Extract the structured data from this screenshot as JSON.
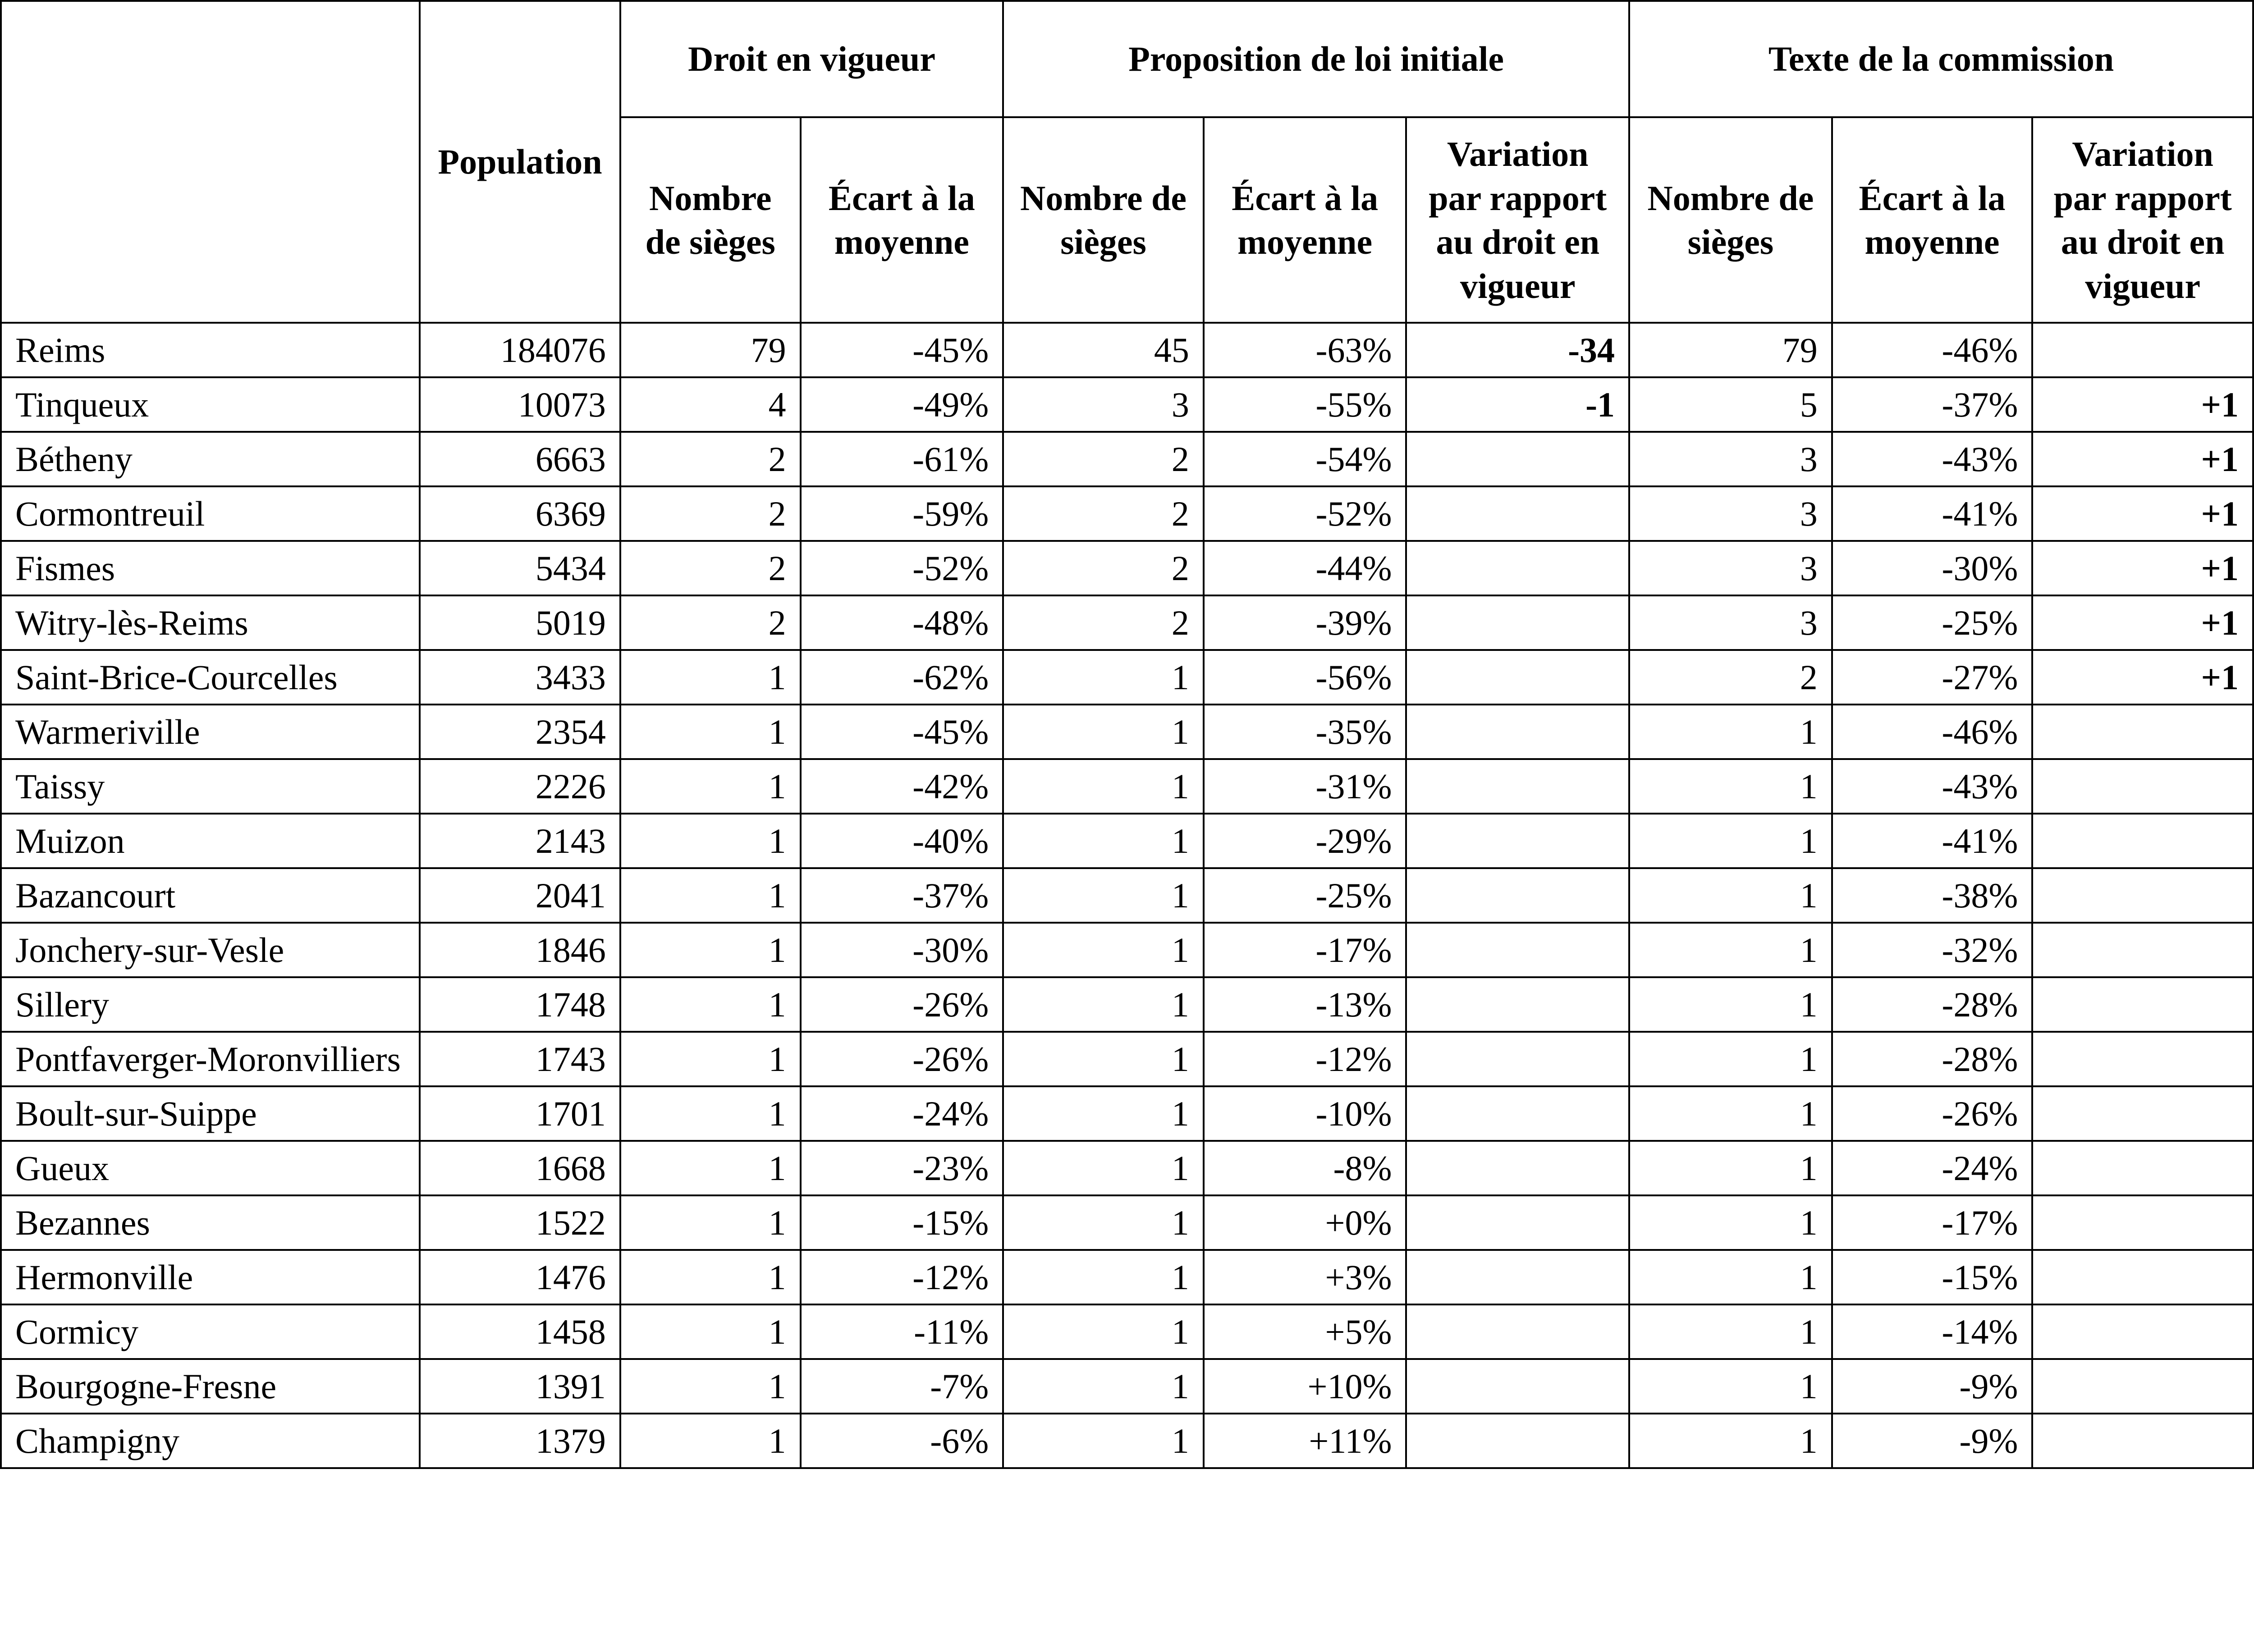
{
  "headers": {
    "population": "Population",
    "group1": "Droit en vigueur",
    "group2": "Proposition de loi initiale",
    "group3": "Texte de la commission",
    "seats": "Nombre de sièges",
    "seats_alt": "Nombre de sièges",
    "ecart": "Écart à la moyenne",
    "variation": "Variation par rapport au droit en vigueur"
  },
  "rows": [
    [
      "Reims",
      "184076",
      "79",
      "-45%",
      "45",
      "-63%",
      "-34",
      "79",
      "-46%",
      ""
    ],
    [
      "Tinqueux",
      "10073",
      "4",
      "-49%",
      "3",
      "-55%",
      "-1",
      "5",
      "-37%",
      "+1"
    ],
    [
      "Bétheny",
      "6663",
      "2",
      "-61%",
      "2",
      "-54%",
      "",
      "3",
      "-43%",
      "+1"
    ],
    [
      "Cormontreuil",
      "6369",
      "2",
      "-59%",
      "2",
      "-52%",
      "",
      "3",
      "-41%",
      "+1"
    ],
    [
      "Fismes",
      "5434",
      "2",
      "-52%",
      "2",
      "-44%",
      "",
      "3",
      "-30%",
      "+1"
    ],
    [
      "Witry-lès-Reims",
      "5019",
      "2",
      "-48%",
      "2",
      "-39%",
      "",
      "3",
      "-25%",
      "+1"
    ],
    [
      "Saint-Brice-Courcelles",
      "3433",
      "1",
      "-62%",
      "1",
      "-56%",
      "",
      "2",
      "-27%",
      "+1"
    ],
    [
      "Warmeriville",
      "2354",
      "1",
      "-45%",
      "1",
      "-35%",
      "",
      "1",
      "-46%",
      ""
    ],
    [
      "Taissy",
      "2226",
      "1",
      "-42%",
      "1",
      "-31%",
      "",
      "1",
      "-43%",
      ""
    ],
    [
      "Muizon",
      "2143",
      "1",
      "-40%",
      "1",
      "-29%",
      "",
      "1",
      "-41%",
      ""
    ],
    [
      "Bazancourt",
      "2041",
      "1",
      "-37%",
      "1",
      "-25%",
      "",
      "1",
      "-38%",
      ""
    ],
    [
      "Jonchery-sur-Vesle",
      "1846",
      "1",
      "-30%",
      "1",
      "-17%",
      "",
      "1",
      "-32%",
      ""
    ],
    [
      "Sillery",
      "1748",
      "1",
      "-26%",
      "1",
      "-13%",
      "",
      "1",
      "-28%",
      ""
    ],
    [
      "Pontfaverger-Moronvilliers",
      "1743",
      "1",
      "-26%",
      "1",
      "-12%",
      "",
      "1",
      "-28%",
      ""
    ],
    [
      "Boult-sur-Suippe",
      "1701",
      "1",
      "-24%",
      "1",
      "-10%",
      "",
      "1",
      "-26%",
      ""
    ],
    [
      "Gueux",
      "1668",
      "1",
      "-23%",
      "1",
      "-8%",
      "",
      "1",
      "-24%",
      ""
    ],
    [
      "Bezannes",
      "1522",
      "1",
      "-15%",
      "1",
      "+0%",
      "",
      "1",
      "-17%",
      ""
    ],
    [
      "Hermonville",
      "1476",
      "1",
      "-12%",
      "1",
      "+3%",
      "",
      "1",
      "-15%",
      ""
    ],
    [
      "Cormicy",
      "1458",
      "1",
      "-11%",
      "1",
      "+5%",
      "",
      "1",
      "-14%",
      ""
    ],
    [
      "Bourgogne-Fresne",
      "1391",
      "1",
      "-7%",
      "1",
      "+10%",
      "",
      "1",
      "-9%",
      ""
    ],
    [
      "Champigny",
      "1379",
      "1",
      "-6%",
      "1",
      "+11%",
      "",
      "1",
      "-9%",
      ""
    ]
  ]
}
